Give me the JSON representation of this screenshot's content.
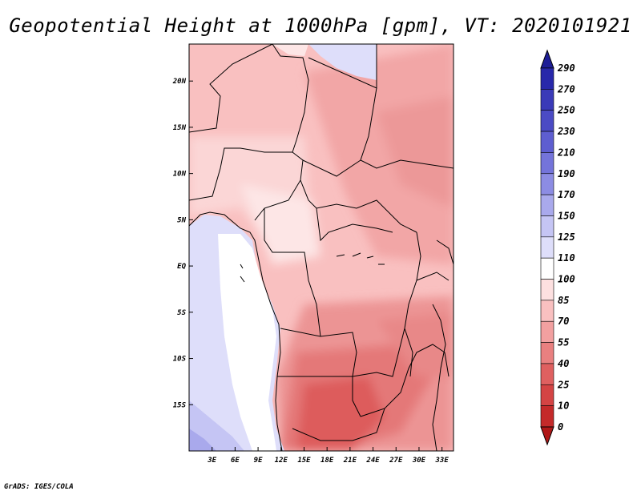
{
  "title": "Geopotential Height at 1000hPa [gpm], VT: 2020101921",
  "credit": "GrADS: IGES/COLA",
  "map": {
    "lon_range": [
      0,
      34.5
    ],
    "lat_range": [
      -20,
      24
    ],
    "x_ticks": [
      "3E",
      "6E",
      "9E",
      "12E",
      "15E",
      "18E",
      "21E",
      "24E",
      "27E",
      "30E",
      "33E"
    ],
    "x_tick_values": [
      3,
      6,
      9,
      12,
      15,
      18,
      21,
      24,
      27,
      30,
      33
    ],
    "y_ticks": [
      "20N",
      "15N",
      "10N",
      "5N",
      "EQ",
      "5S",
      "10S",
      "15S"
    ],
    "y_tick_values": [
      20,
      15,
      10,
      5,
      0,
      -5,
      -10,
      -15
    ]
  },
  "colorbar": {
    "labels": [
      "290",
      "270",
      "250",
      "230",
      "210",
      "190",
      "170",
      "150",
      "125",
      "110",
      "100",
      "85",
      "70",
      "55",
      "40",
      "25",
      "10",
      "0"
    ],
    "colors": [
      "#1e1e96",
      "#2828aa",
      "#3a3ab8",
      "#4b4bc4",
      "#5e5ed0",
      "#7474da",
      "#8c8ce3",
      "#a9a9ec",
      "#c5c5f4",
      "#dedefa",
      "#ffffff",
      "#fde0e0",
      "#f9c0c0",
      "#f2a0a0",
      "#e98080",
      "#df6060",
      "#d44444",
      "#c42a2a",
      "#b01818"
    ]
  }
}
